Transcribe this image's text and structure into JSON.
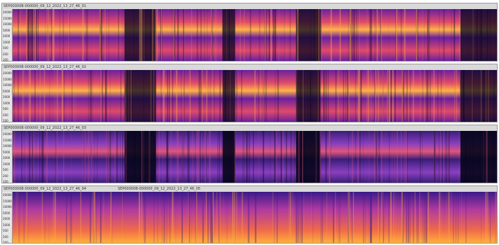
{
  "tracks": [
    {
      "name": "track-1",
      "label": "SEP00000B-000000_09_12_2022_13_27_46_01",
      "ticks": [
        "20000",
        "15000",
        "10000",
        "5000",
        "2000",
        "1000",
        "500",
        "200",
        "100"
      ],
      "colors": {
        "dark": "#0a0820",
        "mid": "#6b1fa0",
        "high": "#e04a6a",
        "peak": "#ffb347"
      }
    },
    {
      "name": "track-2",
      "label": "SEP00000B-000000_09_12_2022_13_27_46_02",
      "ticks": [
        "20000",
        "15000",
        "10000",
        "5000",
        "2000",
        "1000",
        "500",
        "200",
        "100"
      ],
      "colors": {
        "dark": "#0a0820",
        "mid": "#6b1fa0",
        "high": "#e04a6a",
        "peak": "#ffb347"
      }
    },
    {
      "name": "track-3",
      "label": "SEP00000B-000000_09_12_2022_13_27_46_03",
      "ticks": [
        "20000",
        "15000",
        "10000",
        "5000",
        "2000",
        "1000",
        "500",
        "200",
        "100"
      ],
      "colors": {
        "dark": "#05051a",
        "mid": "#3a1e7a",
        "high": "#8a3fc0",
        "peak": "#e0557a"
      }
    },
    {
      "name": "track-4",
      "label": "SEP00000B-000000_09_12_2022_13_27_46_04",
      "label2": "SEP00000B-000000_09_12_2022_13_27_46_05",
      "ticks": [
        "20000",
        "15000",
        "10000",
        "5000",
        "2000",
        "1000",
        "500",
        "200",
        "100"
      ],
      "colors": {
        "dark": "#3a1a8a",
        "mid": "#b03aa0",
        "high": "#f06a4a",
        "peak": "#ffb03a"
      }
    }
  ]
}
